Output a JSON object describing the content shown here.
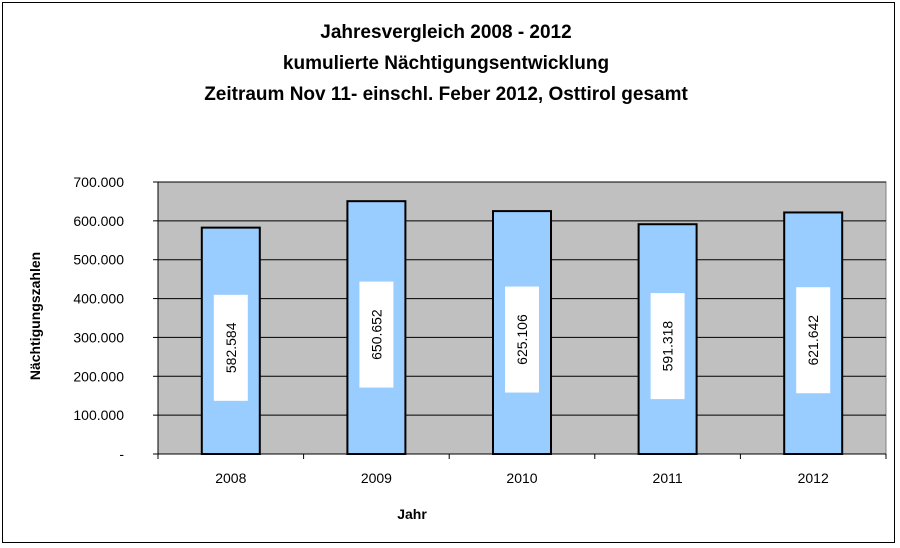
{
  "chart_data": {
    "type": "bar",
    "title_lines": [
      "Jahresvergleich 2008 - 2012",
      "kumulierte Nächtigungsentwicklung",
      "Zeitraum Nov 11- einschl. Feber 2012, Osttirol gesamt"
    ],
    "xlabel": "Jahr",
    "ylabel": "Nächtigungszahlen",
    "categories": [
      "2008",
      "2009",
      "2010",
      "2011",
      "2012"
    ],
    "values": [
      582584,
      650652,
      625106,
      591318,
      621642
    ],
    "value_labels": [
      "582.584",
      "650.652",
      "625.106",
      "591.318",
      "621.642"
    ],
    "ylim": [
      0,
      700000
    ],
    "yticks": [
      0,
      100000,
      200000,
      300000,
      400000,
      500000,
      600000,
      700000
    ],
    "ytick_labels": [
      "-",
      "100.000",
      "200.000",
      "300.000",
      "400.000",
      "500.000",
      "600.000",
      "700.000"
    ],
    "grid": true,
    "legend": "none",
    "colors": {
      "bar_fill": "#99CCFF",
      "bar_stroke": "#000000",
      "plot_background": "#C0C0C0",
      "gridline": "#000000",
      "label_box": "#FFFFFF"
    }
  }
}
